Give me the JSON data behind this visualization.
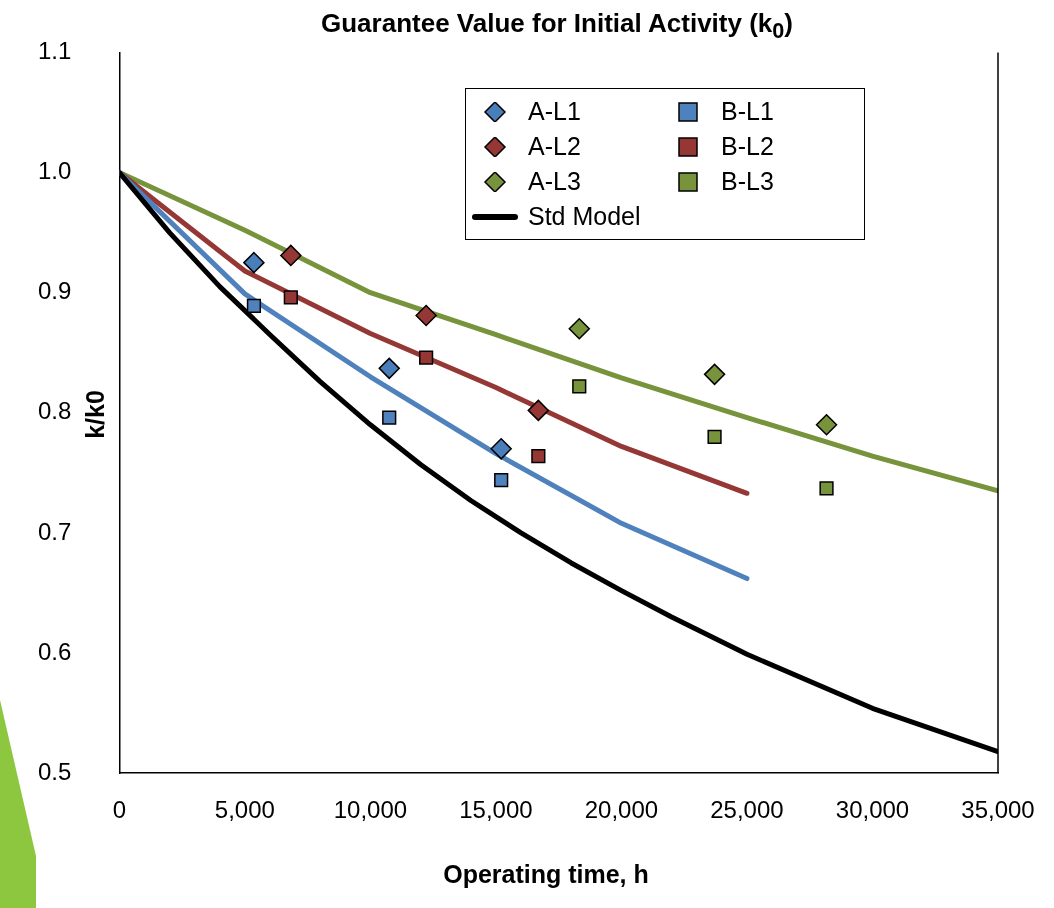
{
  "chart_data": {
    "type": "scatter",
    "title": "Guarantee Value for Initial Activity (k$_{0}$)",
    "xlabel": "Operating time, h",
    "ylabel": "k/k0",
    "xlim": [
      0,
      35000
    ],
    "xticks": [
      0,
      {
        "value": 5000,
        "label": "5,000"
      },
      {
        "value": 10000,
        "label": "10,000"
      },
      {
        "value": 15000,
        "label": "15,000"
      },
      {
        "value": 20000,
        "label": "20,000"
      },
      {
        "value": 25000,
        "label": "25,000"
      },
      {
        "value": 30000,
        "label": "30,000"
      },
      {
        "value": 35000,
        "label": "35,000"
      }
    ],
    "ylim": [
      0.5,
      1.1
    ],
    "yticks": [
      {
        "value": 0.5,
        "label": "0.5"
      },
      {
        "value": 0.6,
        "label": "0.6"
      },
      {
        "value": 0.7,
        "label": "0.7"
      },
      {
        "value": 0.8,
        "label": "0.8"
      },
      {
        "value": 0.9,
        "label": "0.9"
      },
      {
        "value": 1,
        "label": "1.0"
      },
      {
        "value": 1.1,
        "label": "1.1"
      }
    ],
    "grid": false,
    "legend": "top right",
    "series": [
      {
        "name": "A-L1",
        "marker": "diamond",
        "color": "#4a7ebb",
        "x": [
          5360,
          10750,
          15210
        ],
        "values": [
          0.925,
          0.837,
          0.77
        ]
      },
      {
        "name": "B-L1",
        "marker": "square",
        "color": "#4f81bd",
        "x": [
          5360,
          10750,
          15210
        ],
        "values": [
          0.889,
          0.796,
          0.744
        ]
      },
      {
        "name": "A-L2",
        "marker": "diamond",
        "color": "#953735",
        "x": [
          6830,
          12220,
          16690
        ],
        "values": [
          0.931,
          0.881,
          0.802
        ]
      },
      {
        "name": "B-L2",
        "marker": "square",
        "color": "#953735",
        "x": [
          6830,
          12220,
          16690
        ],
        "values": [
          0.896,
          0.846,
          0.764
        ]
      },
      {
        "name": "A-L3",
        "marker": "diamond",
        "color": "#77933c",
        "x": [
          18320,
          23710,
          28170
        ],
        "values": [
          0.87,
          0.832,
          0.79
        ]
      },
      {
        "name": "B-L3",
        "marker": "square",
        "color": "#77933c",
        "x": [
          18320,
          23710,
          28170
        ],
        "values": [
          0.822,
          0.78,
          0.737
        ]
      },
      {
        "name": "Std Model",
        "type": "line",
        "marker": "none",
        "color": "#000000",
        "x": [
          0,
          2000,
          4000,
          6000,
          8000,
          10000,
          12000,
          14000,
          16000,
          18000,
          20000,
          22000,
          25000,
          30000,
          35000
        ],
        "values": [
          1,
          0.95,
          0.905,
          0.865,
          0.826,
          0.79,
          0.757,
          0.727,
          0.7,
          0.675,
          0.652,
          0.63,
          0.599,
          0.554,
          0.518
        ]
      },
      {
        "type": "line",
        "marker": "none",
        "color": "#4f81bd",
        "x": [
          0,
          5000,
          10000,
          15000,
          20000,
          25000
        ],
        "values": [
          1,
          0.899,
          0.83,
          0.766,
          0.708,
          0.662
        ]
      },
      {
        "type": "line",
        "marker": "none",
        "color": "#953735",
        "x": [
          0,
          5000,
          10000,
          15000,
          20000,
          25000
        ],
        "values": [
          1,
          0.918,
          0.866,
          0.821,
          0.772,
          0.733
        ]
      },
      {
        "type": "line",
        "marker": "none",
        "color": "#77933c",
        "x": [
          0,
          5000,
          10000,
          15000,
          20000,
          25000,
          30000,
          35000
        ],
        "values": [
          1,
          0.952,
          0.9,
          0.865,
          0.829,
          0.796,
          0.764,
          0.735
        ]
      }
    ]
  }
}
